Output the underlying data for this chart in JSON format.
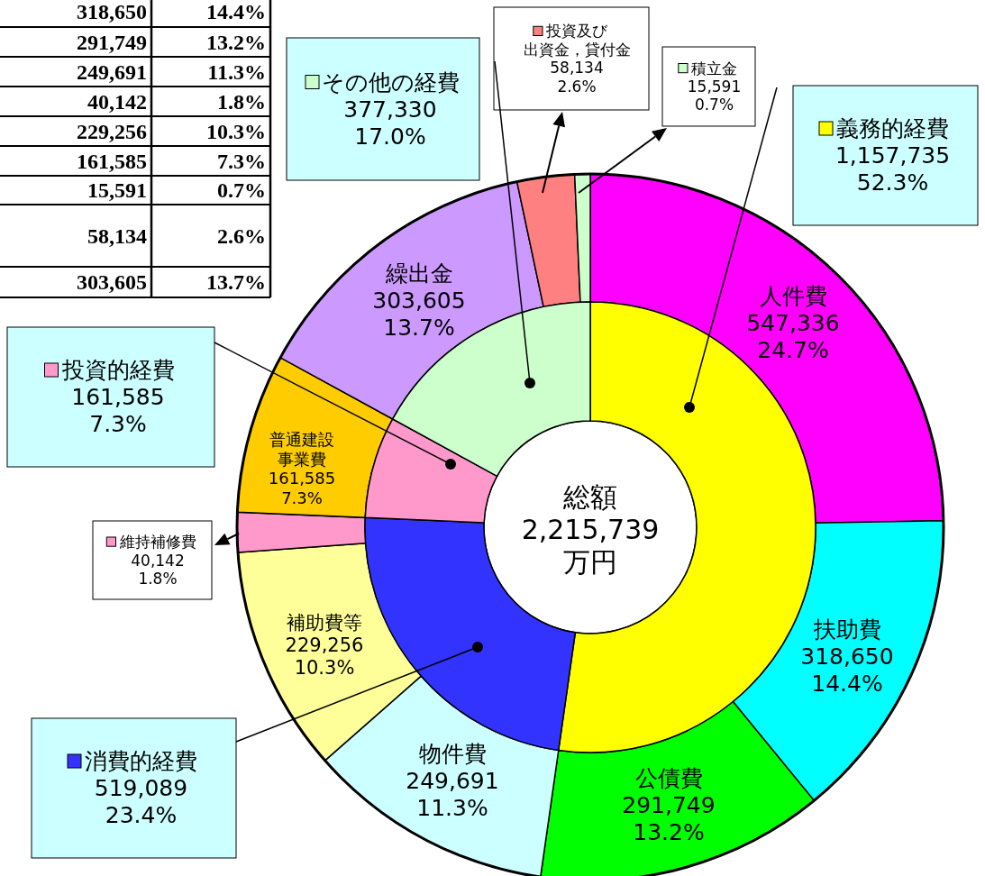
{
  "chart_data": [
    {
      "type": "donut",
      "categories": [
        "人件費",
        "扶助費",
        "公債費",
        "物件費",
        "補助費等",
        "維持補修費",
        "普通建設事業費",
        "繰出金",
        "投資及び出資金，貸付金",
        "積立金"
      ],
      "values": [
        547336,
        318650,
        291749,
        249691,
        229256,
        40142,
        161585,
        303605,
        58134,
        15591
      ],
      "colors": [
        "#ff00ff",
        "#00ffff",
        "#00ff00",
        "#ccffff",
        "#ffff99",
        "#ff99cc",
        "#ffcc00",
        "#cc99ff",
        "#ff8080",
        "#ccffcc"
      ],
      "value_labels": [
        "547,336\n24.7%",
        "318,650\n14.4%",
        "291,749\n13.2%",
        "249,691\n11.3%",
        "229,256\n10.3%",
        "40,142\n1.8%",
        "161,585\n7.3%",
        "303,605\n13.7%",
        "58,134\n2.6%",
        "15,591\n0.7%"
      ],
      "annotations": [
        "総額",
        "2,215,739",
        "万円"
      ],
      "legend": "top"
    },
    {
      "type": "donut",
      "categories": [
        "義務的経費",
        "消費的経費",
        "投資的経費",
        "その他の経費"
      ],
      "values": [
        1157735,
        519089,
        161585,
        377330
      ],
      "colors": [
        "#ffff00",
        "#3333ff",
        "#ff99cc",
        "#ccffcc"
      ],
      "value_labels": [
        "1,157,735\n52.3%",
        "519,089\n23.4%",
        "161,585\n7.3%",
        "377,330\n17.0%"
      ],
      "legend": "left"
    },
    {
      "type": "other",
      "annotations": [
        "318,650",
        "14.4%",
        "291,749",
        "13.2%",
        "249,691",
        "11.3%",
        "40,142",
        "1.8%",
        "229,256",
        "10.3%",
        "161,585",
        "7.3%",
        "15,591",
        "0.7%",
        "58,134",
        "2.6%",
        "303,605",
        "13.7%"
      ]
    }
  ]
}
